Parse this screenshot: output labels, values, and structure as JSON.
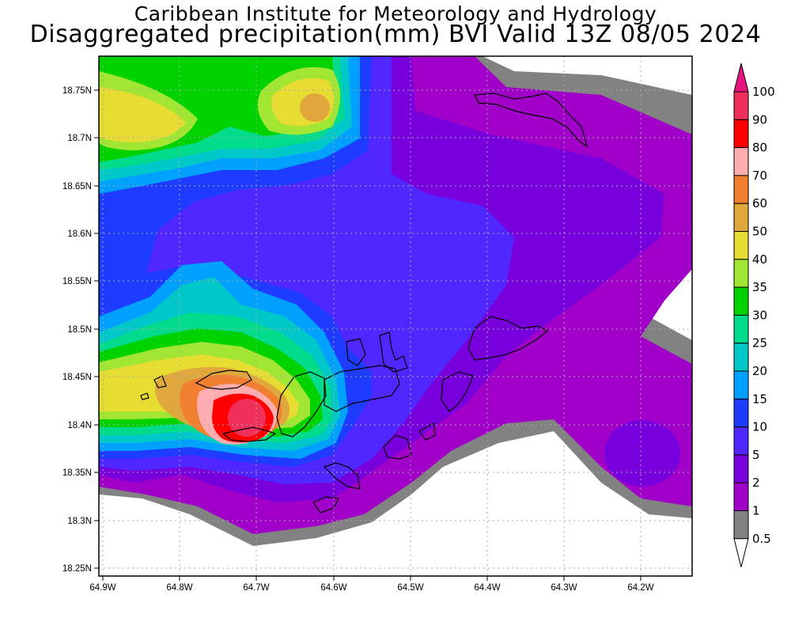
{
  "titles": {
    "line1": "Caribbean Institute for Meteorology and Hydrology",
    "line2": "Disaggregated precipitation(mm) BVI Valid 13Z 08/05 2024"
  },
  "axes": {
    "x_ticks": [
      "64.9W",
      "64.8W",
      "64.7W",
      "64.6W",
      "64.5W",
      "64.4W",
      "64.3W",
      "64.2W"
    ],
    "y_ticks": [
      "18.75N",
      "18.7N",
      "18.65N",
      "18.6N",
      "18.55N",
      "18.5N",
      "18.45N",
      "18.4N",
      "18.35N",
      "18.3N",
      "18.25N"
    ]
  },
  "colorbar": {
    "levels": [
      {
        "label": "100",
        "color": "#f0305a"
      },
      {
        "label": "90",
        "color": "#ff0000"
      },
      {
        "label": "80",
        "color": "#ffadb0"
      },
      {
        "label": "70",
        "color": "#f08030"
      },
      {
        "label": "60",
        "color": "#e0a83c"
      },
      {
        "label": "50",
        "color": "#e6dc32"
      },
      {
        "label": "40",
        "color": "#a0e632"
      },
      {
        "label": "35",
        "color": "#00d200"
      },
      {
        "label": "30",
        "color": "#00dc8c"
      },
      {
        "label": "25",
        "color": "#00c8c8"
      },
      {
        "label": "20",
        "color": "#00a0ff"
      },
      {
        "label": "15",
        "color": "#1e3cff"
      },
      {
        "label": "10",
        "color": "#5028ff"
      },
      {
        "label": "5",
        "color": "#7800dc"
      },
      {
        "label": "2",
        "color": "#a000c8"
      },
      {
        "label": "1",
        "color": "#828282"
      },
      {
        "label": "0.5",
        "color": "#ffffff"
      }
    ],
    "top_cap_color": "#e6147e"
  }
}
